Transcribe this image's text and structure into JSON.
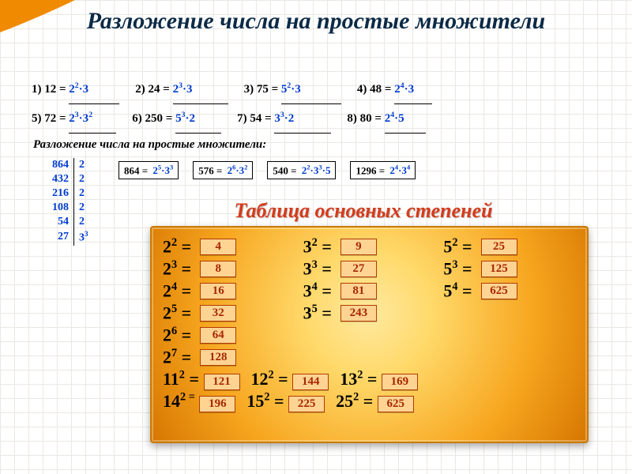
{
  "title": "Разложение числа на простые множители",
  "caption": "Разложение  числа на простые множители:",
  "colors": {
    "answer": "#003bcf",
    "panel_border": "#c97a00",
    "panel_grad_inner": "#ffe9a0",
    "panel_grad_outer": "#d67600",
    "abox_border": "#b33a00",
    "abox_bg": "#ffd493",
    "abox_text": "#a72700",
    "title_color": "#0b2a46",
    "table_title_color": "#d63b1a"
  },
  "problems_row1": [
    {
      "n": "1)",
      "lhs": "12 =",
      "ans_html": "2<sup>2</sup>·3",
      "blank_w": 64
    },
    {
      "n": "2)",
      "lhs": "24 =",
      "ans_html": "2<sup>3</sup>·3",
      "blank_w": 70
    },
    {
      "n": "3)",
      "lhs": "75 =",
      "ans_html": "5<sup>2</sup>·3",
      "blank_w": 76
    },
    {
      "n": "4)",
      "lhs": "48 =",
      "ans_html": "2<sup>4</sup>·3",
      "blank_w": 48
    }
  ],
  "problems_row2": [
    {
      "n": "5)",
      "lhs": "72 =",
      "ans_html": "2<sup>3</sup>·3<sup>2</sup>",
      "blank_w": 60
    },
    {
      "n": "6)",
      "lhs": "250 =",
      "ans_html": "5<sup>3</sup>·2",
      "blank_w": 58
    },
    {
      "n": "7)",
      "lhs": "54 =",
      "ans_html": "3<sup>3</sup>·2",
      "blank_w": 72
    },
    {
      "n": "8)",
      "lhs": "80 =",
      "ans_html": "2<sup>4</sup>·5",
      "blank_w": 52
    }
  ],
  "ladder": [
    [
      "864",
      "2"
    ],
    [
      "432",
      "2"
    ],
    [
      "216",
      "2"
    ],
    [
      "108",
      "2"
    ],
    [
      "54",
      "2"
    ],
    [
      "27",
      "3<sup>3</sup>"
    ]
  ],
  "bigboxes": [
    {
      "lhs": "864 =",
      "ans_html": "2<sup>5</sup>·3<sup>3</sup>"
    },
    {
      "lhs": "576 =",
      "ans_html": "2<sup>6</sup>·3<sup>2</sup>"
    },
    {
      "lhs": "540 =",
      "ans_html": "2<sup>2</sup>·3<sup>3</sup>·5"
    },
    {
      "lhs": "1296 =",
      "ans_html": "2<sup>4</sup>·3<sup>4</sup>"
    }
  ],
  "table_title": "Таблица основных степеней",
  "col2": [
    {
      "p": "2<sup>2</sup> =",
      "v": "4"
    },
    {
      "p": "2<sup>3</sup> =",
      "v": "8"
    },
    {
      "p": "2<sup>4</sup> =",
      "v": "16"
    },
    {
      "p": "2<sup>5</sup> =",
      "v": "32"
    },
    {
      "p": "2<sup>6</sup> =",
      "v": "64"
    },
    {
      "p": "2<sup>7</sup> =",
      "v": "128"
    }
  ],
  "col3": [
    {
      "p": "3<sup>2</sup> =",
      "v": "9"
    },
    {
      "p": "3<sup>3</sup> =",
      "v": "27"
    },
    {
      "p": "3<sup>4</sup> =",
      "v": "81"
    },
    {
      "p": "3<sup>5</sup> =",
      "v": "243"
    }
  ],
  "col5": [
    {
      "p": "5<sup>2</sup> =",
      "v": "25"
    },
    {
      "p": "5<sup>3</sup> =",
      "v": "125"
    },
    {
      "p": "5<sup>4</sup> =",
      "v": "625"
    }
  ],
  "bottom": [
    [
      {
        "p": "11<sup>2</sup> =",
        "v": "121"
      },
      {
        "p": "12<sup>2</sup> =",
        "v": "144"
      },
      {
        "p": "13<sup>2</sup> =",
        "v": "169"
      }
    ],
    [
      {
        "p": "14<sup>2 =</sup>",
        "v": "196"
      },
      {
        "p": "15<sup>2</sup> =",
        "v": "225"
      },
      {
        "p": "25<sup>2</sup> =",
        "v": "625"
      }
    ]
  ],
  "swoosh_colors": [
    "#6fa92a",
    "#b4d43a",
    "#f4b21a",
    "#f08a00"
  ]
}
